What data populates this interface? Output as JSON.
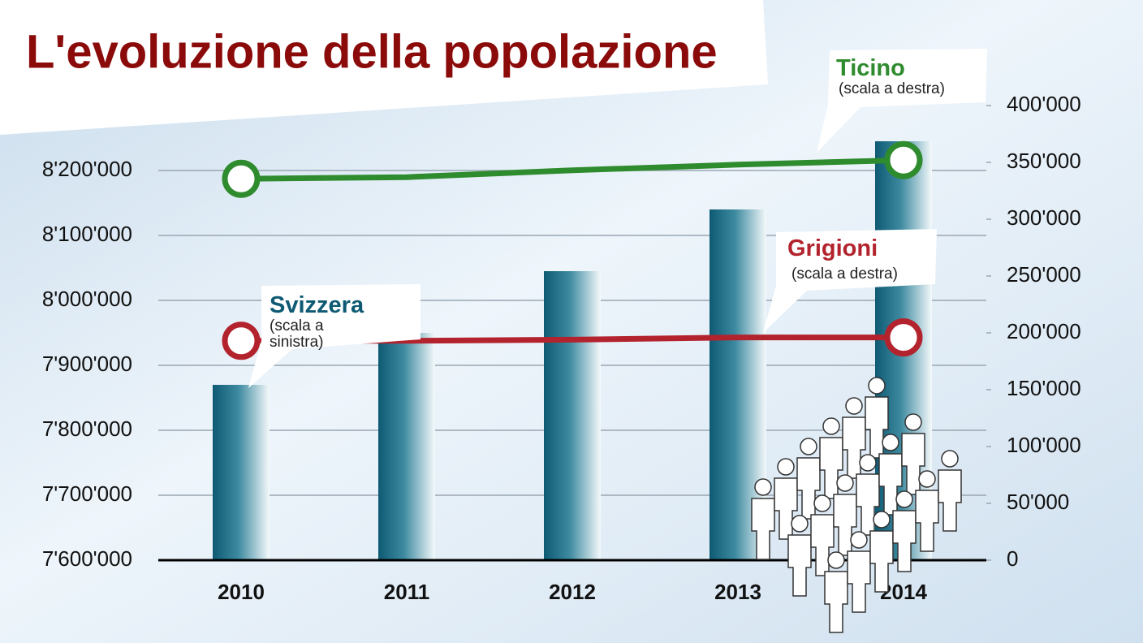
{
  "chart_data": {
    "type": "bar_line",
    "title": "L'evoluzione della popolazione",
    "categories": [
      "2010",
      "2011",
      "2012",
      "2013",
      "2014"
    ],
    "series": [
      {
        "name": "Svizzera",
        "color": "#0e5a73",
        "type": "bar",
        "axis": "y",
        "note": "(scala a sinistra)",
        "values": [
          7870000,
          7950000,
          8045000,
          8140000,
          8245000
        ]
      },
      {
        "name": "Ticino",
        "color": "#2e8b2e",
        "type": "line",
        "axis": "y2",
        "note": "(scala a destra)",
        "values": [
          335500,
          337000,
          343000,
          348000,
          352000
        ]
      },
      {
        "name": "Grigioni",
        "color": "#b3232d",
        "type": "line",
        "axis": "y2",
        "note": "(scala a destra)",
        "values": [
          193000,
          193000,
          194000,
          196000,
          196000
        ]
      }
    ],
    "ylim": [
      7600000,
      8300000
    ],
    "yticks": [
      {
        "value": 7600000,
        "label": "7'600'000"
      },
      {
        "value": 7700000,
        "label": "7'700'000"
      },
      {
        "value": 7800000,
        "label": "7'800'000"
      },
      {
        "value": 7900000,
        "label": "7'900'000"
      },
      {
        "value": 8000000,
        "label": "8'000'000"
      },
      {
        "value": 8100000,
        "label": "8'100'000"
      },
      {
        "value": 8200000,
        "label": "8'200'000"
      }
    ],
    "y2lim": [
      0,
      400000
    ],
    "y2ticks": [
      0,
      {
        "value": 50000,
        "label": "50'000"
      },
      {
        "value": 100000,
        "label": "100'000"
      },
      {
        "value": 150000,
        "label": "150'000"
      },
      {
        "value": 200000,
        "label": "200'000"
      },
      {
        "value": 250000,
        "label": "250'000"
      },
      {
        "value": 300000,
        "label": "300'000"
      },
      {
        "value": 350000,
        "label": "350'000"
      },
      {
        "value": 400000,
        "label": "400'000"
      }
    ],
    "grid": true
  }
}
